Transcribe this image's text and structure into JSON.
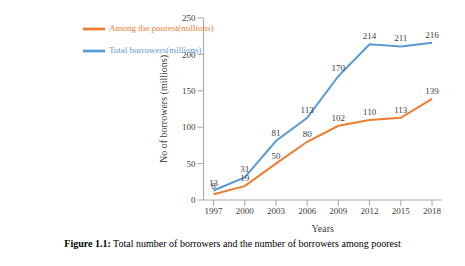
{
  "chart_data": {
    "type": "line",
    "title": "Figure 1.1: Total number of borrowers and the number of borrowers among poorest",
    "x_label": "Years",
    "y_label": "No of borrowers (millions)",
    "categories": [
      "1997",
      "2000",
      "2003",
      "2006",
      "2009",
      "2012",
      "2015",
      "2018"
    ],
    "series": [
      {
        "name": "Total borrowers(millions)",
        "color": "#5b9bd5",
        "values": [
          13,
          31,
          81,
          113,
          170,
          214,
          211,
          216
        ]
      },
      {
        "name": "Among the poorest(millions)",
        "color": "#ed7d31",
        "values": [
          8,
          19,
          50,
          80,
          102,
          110,
          113,
          139
        ]
      }
    ],
    "ylim": [
      0,
      250
    ],
    "yticks": [
      0,
      50,
      100,
      150,
      200,
      250
    ],
    "grid": false,
    "legend": "upper left",
    "data_labels": true
  }
}
